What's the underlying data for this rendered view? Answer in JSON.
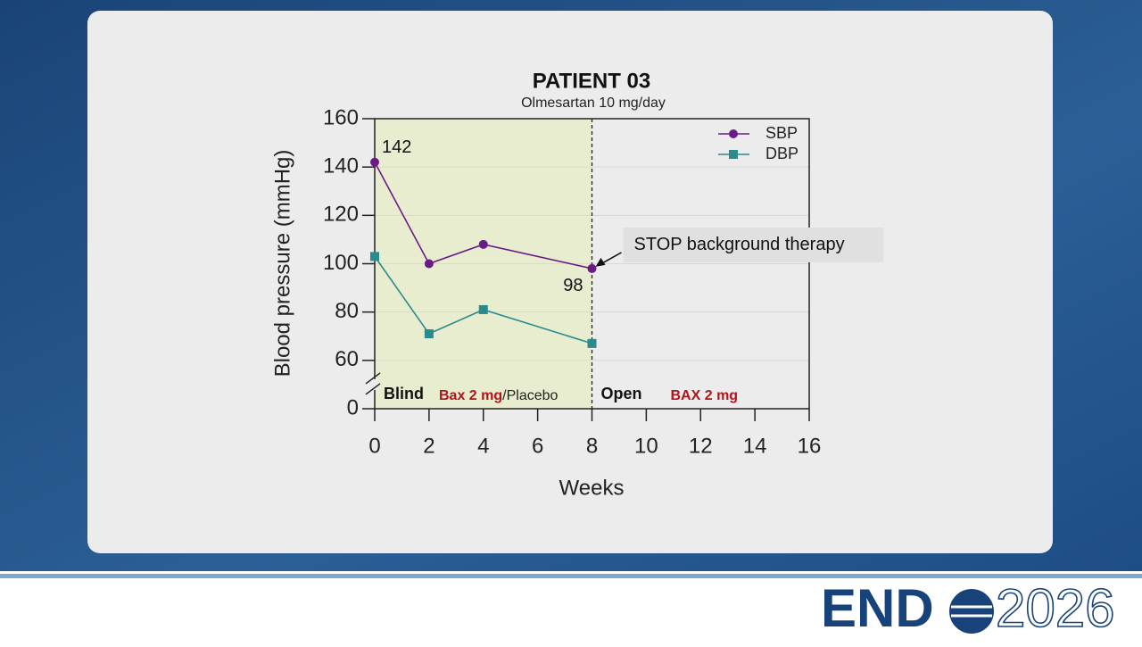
{
  "chart_data": {
    "type": "line",
    "title": "PATIENT 03",
    "subtitle": "Olmesartan 10 mg/day",
    "x_label": "Weeks",
    "y_label": "Blood pressure (mmHg)",
    "x": [
      0,
      2,
      4,
      8
    ],
    "series": [
      {
        "name": "SBP",
        "color": "#6a1b87",
        "marker": "circle",
        "values": [
          142,
          100,
          108,
          98
        ],
        "value_labels": [
          "142",
          null,
          null,
          "98"
        ]
      },
      {
        "name": "DBP",
        "color": "#2a8a8c",
        "marker": "square",
        "values": [
          103,
          71,
          81,
          67
        ]
      }
    ],
    "xlim": [
      0,
      16
    ],
    "xticks": [
      0,
      2,
      4,
      6,
      8,
      10,
      12,
      14,
      16
    ],
    "ylim": [
      0,
      160
    ],
    "yticks": [
      0,
      60,
      80,
      100,
      120,
      140,
      160
    ],
    "y_axis_break": true,
    "legend": "top-right",
    "phases": [
      {
        "label": "Blind",
        "treatment": "Bax 2 mg",
        "comparator": "/Placebo",
        "start": 0,
        "end": 8,
        "color": "#e9edcf"
      },
      {
        "label": "Open",
        "treatment": "BAX 2 mg",
        "start": 8,
        "end": 16
      }
    ],
    "annotation": {
      "text": "STOP background therapy",
      "x": 8,
      "y": 98
    }
  },
  "footer": {
    "logo": "END",
    "logo_year": "2026"
  }
}
